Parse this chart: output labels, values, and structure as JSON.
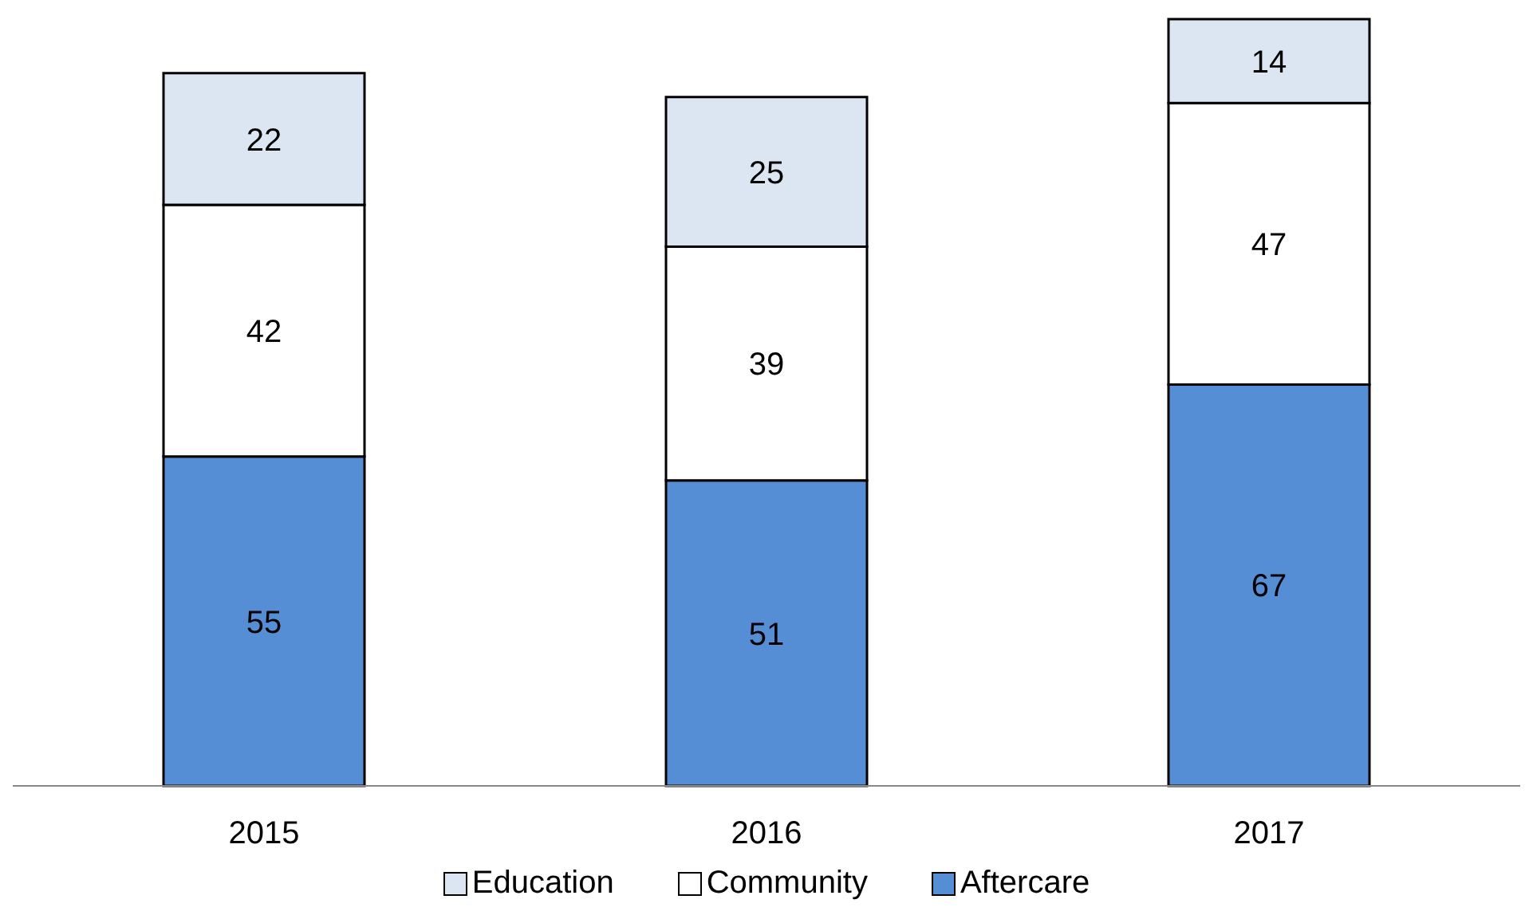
{
  "chart_data": {
    "type": "bar",
    "stacked": true,
    "categories": [
      "2015",
      "2016",
      "2017"
    ],
    "series": [
      {
        "name": "Aftercare",
        "color": "#558ed5",
        "values": [
          55,
          51,
          67
        ]
      },
      {
        "name": "Community",
        "color": "#ffffff",
        "values": [
          42,
          39,
          47
        ]
      },
      {
        "name": "Education",
        "color": "#dce6f2",
        "values": [
          22,
          25,
          14
        ]
      }
    ],
    "data_labels": true,
    "legend": "bottom",
    "grid": false
  }
}
